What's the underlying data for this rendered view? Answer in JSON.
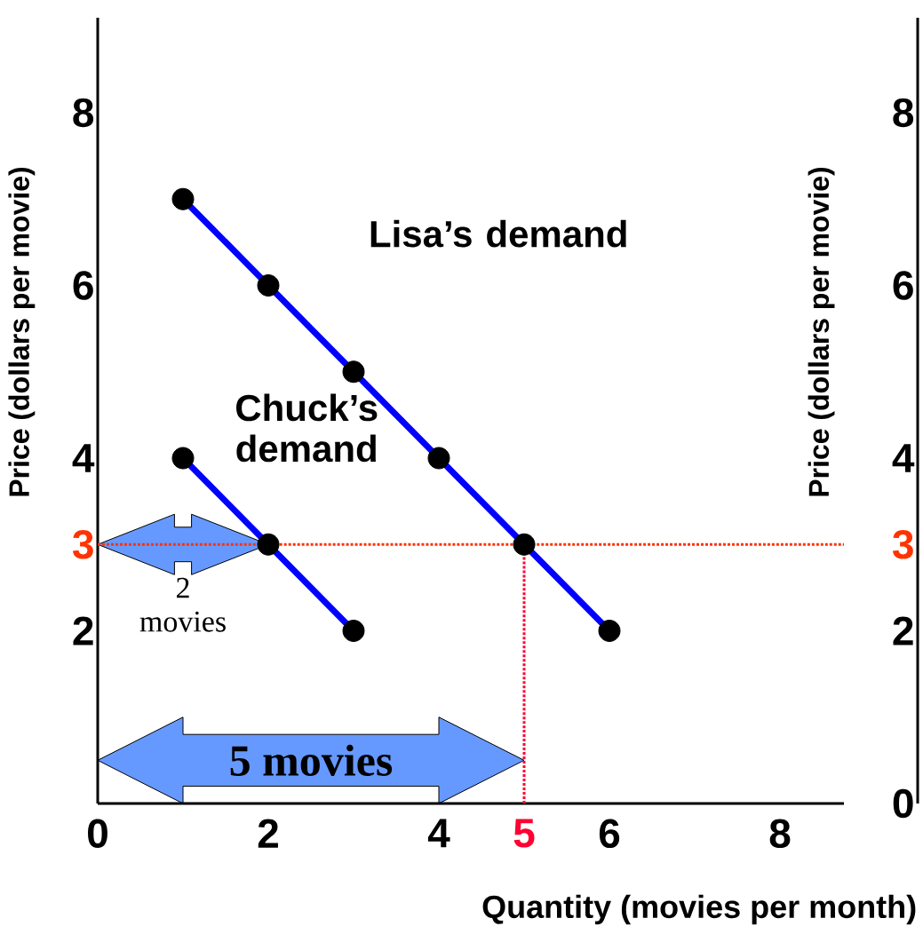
{
  "chart_data": {
    "type": "line",
    "xlabel": "Quantity (movies  per month)",
    "ylabel": "Price (dollars per movie)",
    "y2label": "Price (dollars per movie)",
    "xlim": [
      0,
      8.75
    ],
    "ylim": [
      0,
      9.1
    ],
    "y2lim": [
      0,
      9.1
    ],
    "xticks": [
      0,
      2,
      4,
      5,
      6,
      8
    ],
    "yticks": [
      2,
      3,
      4,
      6,
      8
    ],
    "y2ticks": [
      0,
      2,
      3,
      4,
      6,
      8
    ],
    "marker": "circle",
    "grid": false,
    "line_style": "solid",
    "series": [
      {
        "name": "Lisa’s demand",
        "color": "#0000ff",
        "x": [
          1,
          2,
          3,
          4,
          5,
          6
        ],
        "values": [
          7,
          6,
          5,
          4,
          3,
          2
        ]
      },
      {
        "name": "Chuck’s demand",
        "color": "#0000ff",
        "x": [
          1,
          2,
          3
        ],
        "values": [
          4,
          3,
          2
        ]
      }
    ],
    "ref_lines": [
      {
        "axis": "y",
        "value": 3,
        "color": "#ff3300",
        "line_style": "dotted"
      },
      {
        "axis": "x",
        "value": 5,
        "color": "#ff0033",
        "line_style": "dotted"
      }
    ],
    "annotations": [
      {
        "text": "2 movies",
        "x": 2,
        "y": 3
      },
      "5 movies"
    ]
  }
}
